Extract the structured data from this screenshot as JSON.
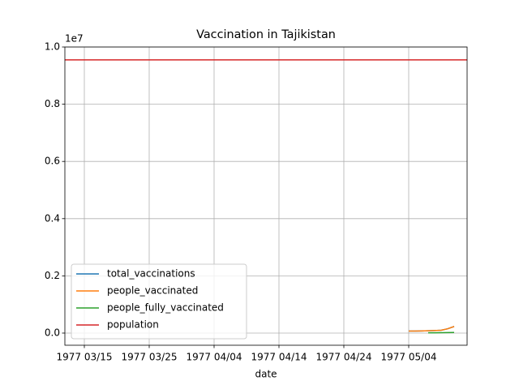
{
  "chart_data": {
    "type": "line",
    "title": "Vaccination in Tajikistan",
    "xlabel": "date",
    "y_offset_label": "1e7",
    "xlim": [
      "1977-03-12",
      "1977-05-13"
    ],
    "ylim": [
      -425000,
      10000000
    ],
    "xticks": [
      {
        "value": "1977-03-15",
        "label": "1977 03/15"
      },
      {
        "value": "1977-03-25",
        "label": "1977 03/25"
      },
      {
        "value": "1977-04-04",
        "label": "1977 04/04"
      },
      {
        "value": "1977-04-14",
        "label": "1977 04/14"
      },
      {
        "value": "1977-04-24",
        "label": "1977 04/24"
      },
      {
        "value": "1977-05-04",
        "label": "1977 05/04"
      }
    ],
    "yticks": [
      {
        "value": 0,
        "label": "0.0"
      },
      {
        "value": 2000000,
        "label": "0.2"
      },
      {
        "value": 4000000,
        "label": "0.4"
      },
      {
        "value": 6000000,
        "label": "0.6"
      },
      {
        "value": 8000000,
        "label": "0.8"
      },
      {
        "value": 10000000,
        "label": "1.0"
      }
    ],
    "grid": true,
    "legend": "lower left",
    "series": [
      {
        "name": "total_vaccinations",
        "color": "#1f77b4",
        "x": [
          "1977-05-04",
          "1977-05-05",
          "1977-05-06",
          "1977-05-07",
          "1977-05-08",
          "1977-05-09",
          "1977-05-10",
          "1977-05-11"
        ],
        "values": [
          70000,
          70000,
          75000,
          80000,
          90000,
          100000,
          150000,
          230000
        ]
      },
      {
        "name": "people_vaccinated",
        "color": "#ff7f0e",
        "x": [
          "1977-05-04",
          "1977-05-05",
          "1977-05-06",
          "1977-05-07",
          "1977-05-08",
          "1977-05-09",
          "1977-05-10",
          "1977-05-11"
        ],
        "values": [
          70000,
          70000,
          75000,
          80000,
          90000,
          100000,
          150000,
          230000
        ]
      },
      {
        "name": "people_fully_vaccinated",
        "color": "#2ca02c",
        "x": [
          "1977-05-07",
          "1977-05-08",
          "1977-05-09",
          "1977-05-10",
          "1977-05-11"
        ],
        "values": [
          10000,
          12000,
          15000,
          18000,
          20000
        ]
      },
      {
        "name": "population",
        "color": "#d62728",
        "x": [
          "1977-03-12",
          "1977-05-13"
        ],
        "values": [
          9550000,
          9550000
        ]
      }
    ]
  }
}
